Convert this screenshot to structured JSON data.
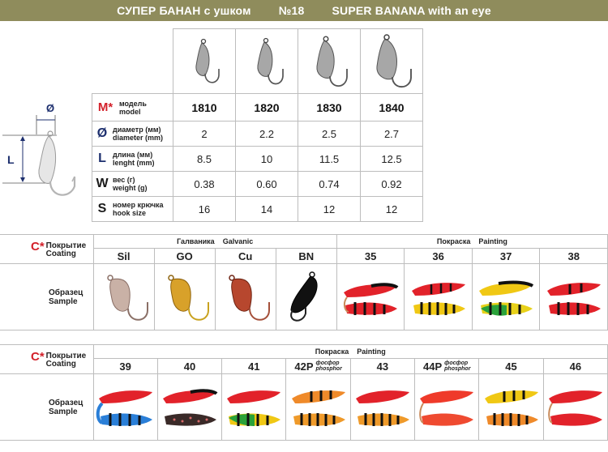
{
  "title": {
    "ru": "СУПЕР БАНАН с ушком",
    "number": "№18",
    "en": "SUPER BANANA with an eye"
  },
  "diagram": {
    "diameter_symbol": "Ø",
    "length_symbol": "L"
  },
  "spec": {
    "models": [
      "1810",
      "1820",
      "1830",
      "1840"
    ],
    "rows": [
      {
        "symbol": "M*",
        "ru": "модель",
        "en": "model",
        "values": [
          "1810",
          "1820",
          "1830",
          "1840"
        ]
      },
      {
        "symbol": "Ø",
        "ru": "диаметр (мм)",
        "en": "diameter (mm)",
        "values": [
          "2",
          "2.2",
          "2.5",
          "2.7"
        ]
      },
      {
        "symbol": "L",
        "ru": "длина (мм)",
        "en": "lenght (mm)",
        "values": [
          "8.5",
          "10",
          "11.5",
          "12.5"
        ]
      },
      {
        "symbol": "W",
        "ru": "вес (г)",
        "en": "weight (g)",
        "values": [
          "0.38",
          "0.60",
          "0.74",
          "0.92"
        ]
      },
      {
        "symbol": "S",
        "ru": "номер крючка",
        "en": "hook size",
        "values": [
          "16",
          "14",
          "12",
          "12"
        ]
      }
    ]
  },
  "coating_label": {
    "symbol": "C*",
    "ru": "Покрытие",
    "en": "Coating"
  },
  "sample_label": {
    "ru": "Образец",
    "en": "Sample"
  },
  "coating1": {
    "groups": [
      {
        "ru": "Галваника",
        "en": "Galvanic"
      },
      {
        "ru": "Покраска",
        "en": "Painting"
      }
    ],
    "codes": [
      "Sil",
      "GO",
      "Cu",
      "BN",
      "35",
      "36",
      "37",
      "38"
    ]
  },
  "coating2": {
    "group": {
      "ru": "Покраска",
      "en": "Painting"
    },
    "codes": [
      {
        "code": "39"
      },
      {
        "code": "40"
      },
      {
        "code": "41"
      },
      {
        "code": "42P",
        "note_ru": "фосфор",
        "note_en": "phosphor"
      },
      {
        "code": "43"
      },
      {
        "code": "44P",
        "note_ru": "фосфор",
        "note_en": "phosphor"
      },
      {
        "code": "45"
      },
      {
        "code": "46"
      }
    ]
  },
  "colors": {
    "banner": "#8f8c5c",
    "accent_red": "#d3202a",
    "accent_blue": "#1d2f6e"
  }
}
